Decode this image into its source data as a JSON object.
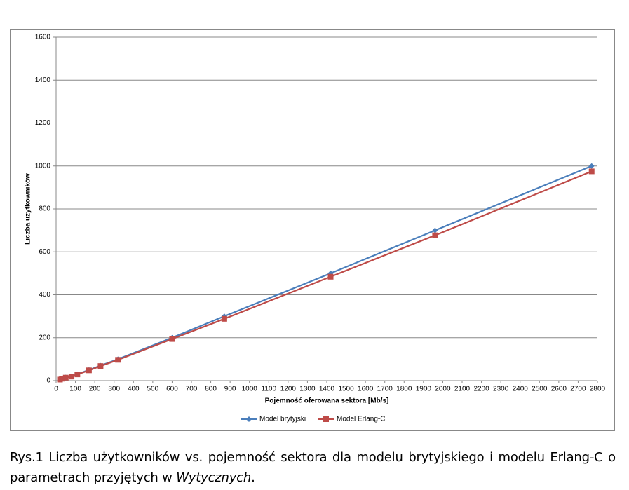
{
  "chart_data": {
    "type": "line",
    "y_label": "Liczba użytkowników",
    "x_label": "Pojemność oferowana sektora [Mb/s]",
    "x": [
      20,
      30,
      50,
      80,
      110,
      170,
      230,
      320,
      600,
      870,
      1420,
      1960,
      2770
    ],
    "series": [
      {
        "name": "Model brytyjski",
        "color": "#4a7ebb",
        "marker": "diamond",
        "values": [
          5,
          10,
          15,
          20,
          30,
          50,
          70,
          100,
          200,
          300,
          500,
          700,
          1000
        ]
      },
      {
        "name": "Model Erlang-C",
        "color": "#be4b48",
        "marker": "square",
        "values": [
          5,
          9,
          14,
          19,
          29,
          48,
          68,
          97,
          194,
          288,
          484,
          677,
          975
        ]
      }
    ],
    "xlim": [
      0,
      2800
    ],
    "xticks": [
      0,
      100,
      200,
      300,
      400,
      500,
      600,
      700,
      800,
      900,
      1000,
      1100,
      1200,
      1300,
      1400,
      1500,
      1600,
      1700,
      1800,
      1900,
      2000,
      2100,
      2200,
      2300,
      2400,
      2500,
      2600,
      2700,
      2800
    ],
    "ylim": [
      0,
      1600
    ],
    "yticks": [
      0,
      200,
      400,
      600,
      800,
      1000,
      1200,
      1400,
      1600
    ],
    "grid": true,
    "legend": "bottom"
  },
  "caption": {
    "text": "Rys.1 Liczba użytkowników vs. pojemność sektora dla modelu brytyjskiego i modelu Erlang-C o parametrach przyjętych w ",
    "italic": "Wytycznych",
    "end": "."
  }
}
